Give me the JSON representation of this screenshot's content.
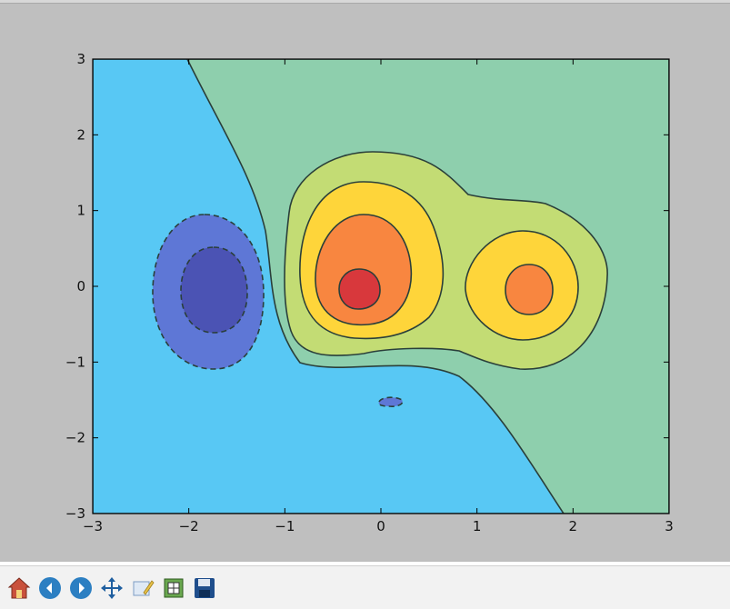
{
  "chart_data": {
    "type": "contour",
    "title": "",
    "xlabel": "",
    "ylabel": "",
    "xlim": [
      -3,
      3
    ],
    "ylim": [
      -3,
      3
    ],
    "x_ticks": [
      -3,
      -2,
      -1,
      0,
      1,
      2,
      3
    ],
    "y_ticks": [
      -3,
      -2,
      -1,
      0,
      1,
      2,
      3
    ],
    "x_tick_labels": [
      "−3",
      "−2",
      "−1",
      "0",
      "1",
      "2",
      "3"
    ],
    "y_tick_labels": [
      "−3",
      "−2",
      "−1",
      "0",
      "1",
      "2",
      "3"
    ],
    "grid": false,
    "legend": "none",
    "negative_contours_dashed": true,
    "levels": [
      {
        "name": "deep-blue",
        "color": "#4b53b4"
      },
      {
        "name": "blue",
        "color": "#5e77d6"
      },
      {
        "name": "light-blue",
        "color": "#58c8f4"
      },
      {
        "name": "green",
        "color": "#8ecfad"
      },
      {
        "name": "yellow-green",
        "color": "#c3dc74"
      },
      {
        "name": "yellow",
        "color": "#fed53a"
      },
      {
        "name": "orange",
        "color": "#f88640"
      },
      {
        "name": "red",
        "color": "#d8383c"
      }
    ],
    "features": [
      {
        "kind": "maximum",
        "center": [
          -0.2,
          0.0
        ],
        "peak_level": "red"
      },
      {
        "kind": "maximum",
        "center": [
          1.55,
          0.0
        ],
        "peak_level": "orange"
      },
      {
        "kind": "minimum",
        "center": [
          -1.7,
          0.1
        ],
        "trough_level": "deep-blue"
      },
      {
        "kind": "minimum",
        "center": [
          0.1,
          -1.45
        ],
        "trough_level": "blue"
      }
    ]
  },
  "toolbar": {
    "buttons": [
      {
        "name": "home-icon"
      },
      {
        "name": "back-arrow-icon"
      },
      {
        "name": "forward-arrow-icon"
      },
      {
        "name": "pan-move-icon"
      },
      {
        "name": "zoom-rect-icon"
      },
      {
        "name": "subplots-config-icon"
      },
      {
        "name": "save-disk-icon"
      }
    ]
  }
}
